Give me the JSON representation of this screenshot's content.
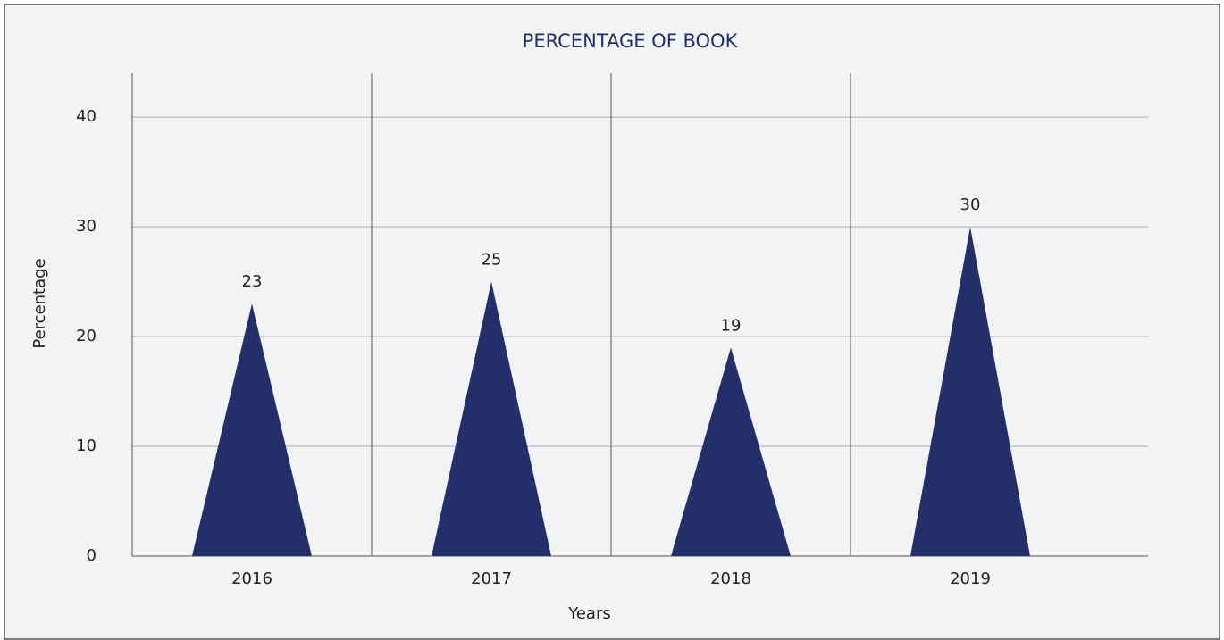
{
  "chart_data": {
    "type": "triangle-bar",
    "title": "PERCENTAGE OF BOOK",
    "x_label": "Years",
    "y_label": "Percentage",
    "categories": [
      "2016",
      "2017",
      "2018",
      "2019"
    ],
    "values": [
      23,
      25,
      19,
      30
    ],
    "color": "#232f69",
    "ylim": [
      0,
      44
    ],
    "yticks": [
      0,
      10,
      20,
      30,
      40
    ],
    "grid": true
  }
}
